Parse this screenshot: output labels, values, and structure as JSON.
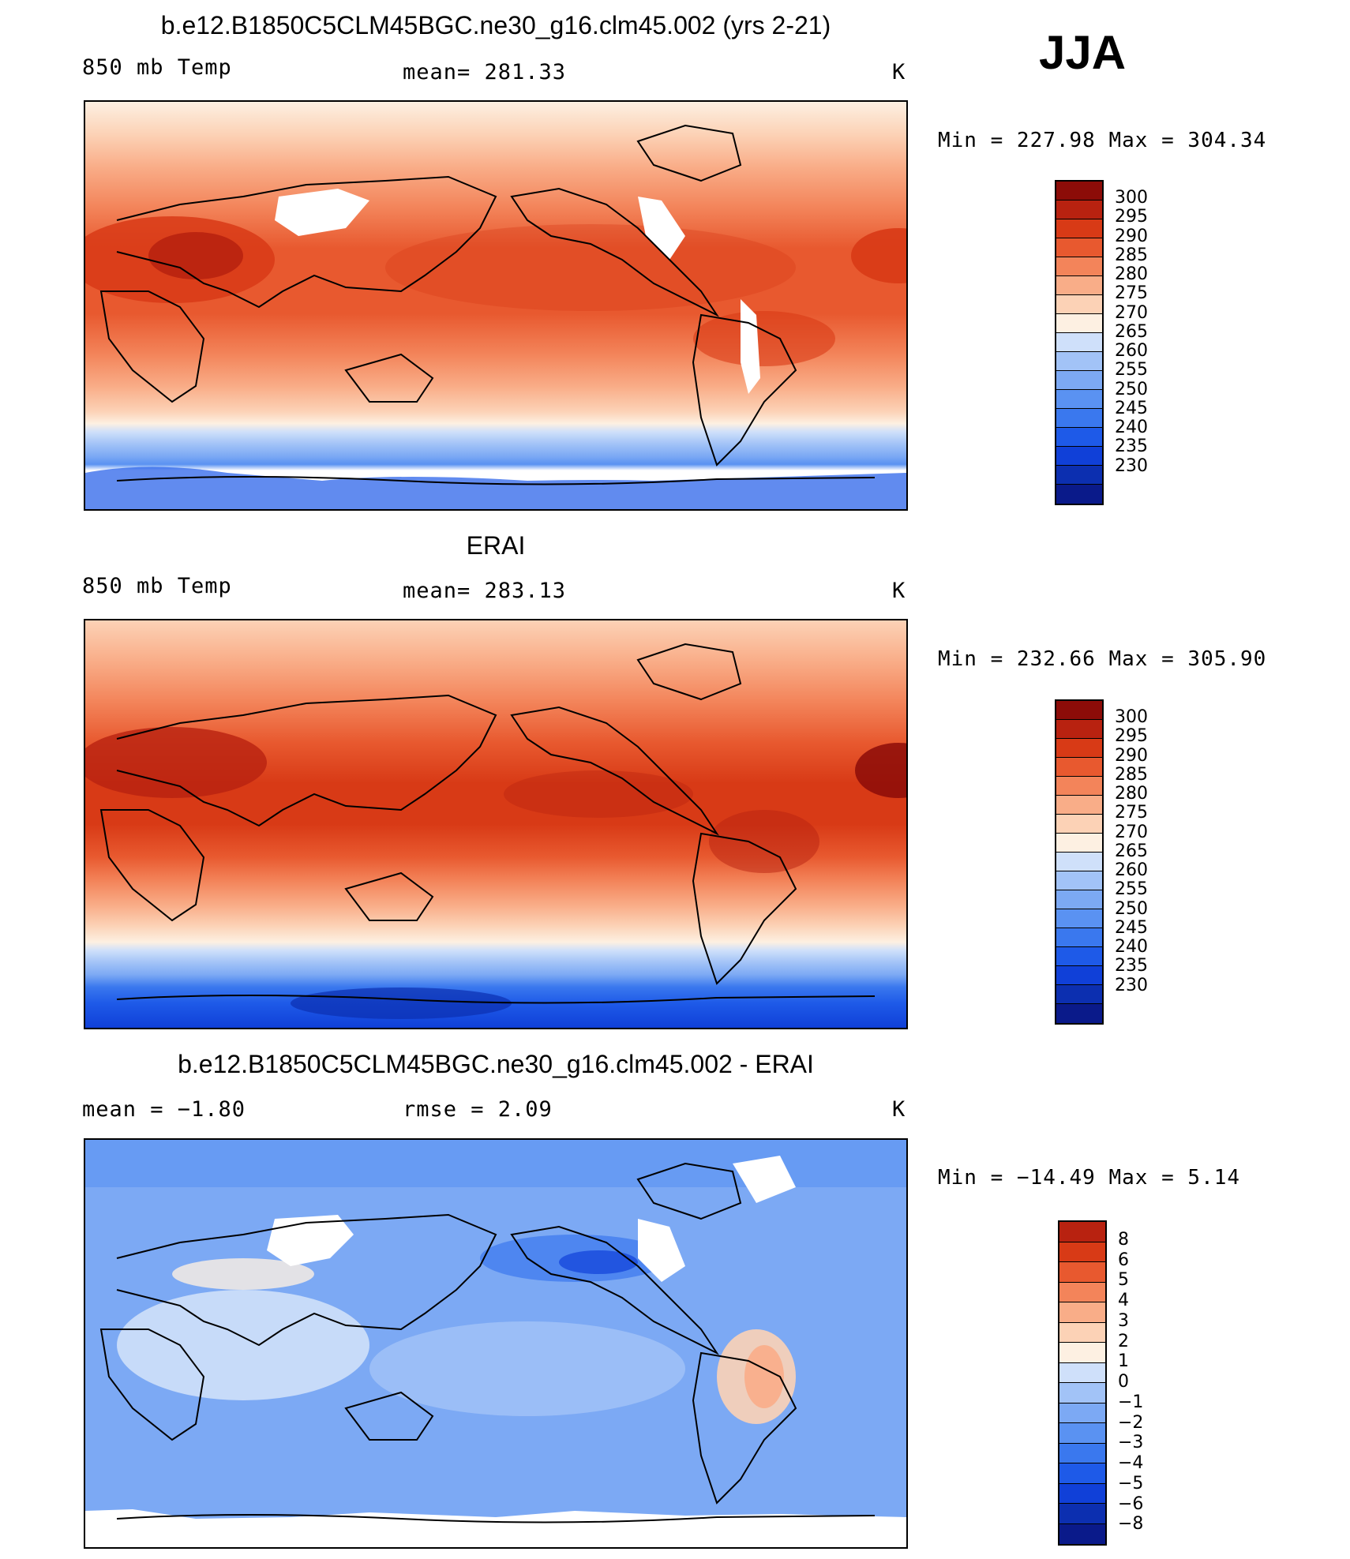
{
  "season": "JJA",
  "palettes": {
    "temp": [
      "#0a1a8a",
      "#0c2fb0",
      "#1040d8",
      "#1e5ae8",
      "#3a78ee",
      "#5a92f2",
      "#7ca9f4",
      "#a2c3f7",
      "#cfe0fa",
      "#fdf0e2",
      "#fcd2b6",
      "#f9ad88",
      "#f3845a",
      "#e8592f",
      "#d83a16",
      "#b82210",
      "#8c0c08"
    ],
    "diff": [
      "#0a1a8a",
      "#0c2fb0",
      "#1040d8",
      "#1e5ae8",
      "#3a78ee",
      "#5a92f2",
      "#7ca9f4",
      "#a2c3f7",
      "#cfe0fa",
      "#fdf0e2",
      "#fcd2b6",
      "#f9ad88",
      "#f3845a",
      "#e8592f",
      "#d83a16",
      "#b82210"
    ]
  },
  "panels": [
    {
      "title": "b.e12.B1850C5CLM45BGC.ne30_g16.clm45.002 (yrs 2-21)",
      "left_label": "850 mb Temp",
      "center_label": "mean= 281.33",
      "units": "K",
      "minmax": "Min = 227.98 Max = 304.34",
      "colorbar": {
        "palette": "temp",
        "levels": [
          "300",
          "295",
          "290",
          "285",
          "280",
          "275",
          "270",
          "265",
          "260",
          "255",
          "250",
          "245",
          "240",
          "235",
          "230"
        ]
      }
    },
    {
      "title": "ERAI",
      "left_label": "850 mb Temp",
      "center_label": "mean= 283.13",
      "units": "K",
      "minmax": "Min = 232.66 Max = 305.90",
      "colorbar": {
        "palette": "temp",
        "levels": [
          "300",
          "295",
          "290",
          "285",
          "280",
          "275",
          "270",
          "265",
          "260",
          "255",
          "250",
          "245",
          "240",
          "235",
          "230"
        ]
      }
    },
    {
      "title": "b.e12.B1850C5CLM45BGC.ne30_g16.clm45.002 - ERAI",
      "left_label": "mean = −1.80",
      "center_label": "rmse = 2.09",
      "units": "K",
      "minmax": "Min = −14.49 Max = 5.14",
      "colorbar": {
        "palette": "diff",
        "levels": [
          "8",
          "6",
          "5",
          "4",
          "3",
          "2",
          "1",
          "0",
          "−1",
          "−2",
          "−3",
          "−4",
          "−5",
          "−6",
          "−8"
        ]
      }
    }
  ]
}
